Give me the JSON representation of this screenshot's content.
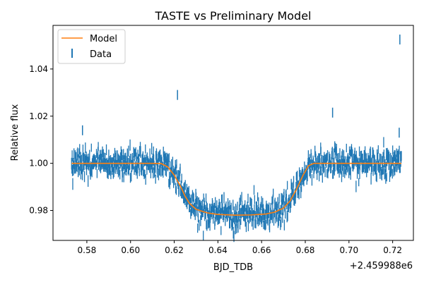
{
  "chart_data": {
    "type": "scatter",
    "title": "TASTE vs Preliminary Model",
    "xlabel": "BJD_TDB",
    "ylabel": "Relative flux",
    "x_offset_label": "+2.459988e6",
    "xlim": [
      0.5645,
      0.7295
    ],
    "ylim": [
      0.9673,
      1.0585
    ],
    "x_ticks": [
      0.58,
      0.6,
      0.62,
      0.64,
      0.66,
      0.68,
      0.7,
      0.72
    ],
    "x_tick_labels": [
      "0.58",
      "0.60",
      "0.62",
      "0.64",
      "0.66",
      "0.68",
      "0.70",
      "0.72"
    ],
    "y_ticks": [
      0.98,
      1.0,
      1.02,
      1.04
    ],
    "y_tick_labels": [
      "0.98",
      "1.00",
      "1.02",
      "1.04"
    ],
    "grid": false,
    "legend": {
      "position": "upper left",
      "entries": [
        {
          "label": "Model",
          "marker": "line",
          "color": "#ff7f0e"
        },
        {
          "label": "Data",
          "marker": "errorbar",
          "color": "#1f77b4"
        }
      ]
    },
    "series": [
      {
        "name": "Model",
        "kind": "line",
        "color": "#ff7f0e",
        "points": [
          [
            0.573,
            1.0
          ],
          [
            0.6,
            1.0
          ],
          [
            0.61,
            1.0
          ],
          [
            0.614,
            0.9999
          ],
          [
            0.617,
            0.9985
          ],
          [
            0.62,
            0.995
          ],
          [
            0.623,
            0.99
          ],
          [
            0.625,
            0.986
          ],
          [
            0.627,
            0.983
          ],
          [
            0.63,
            0.9805
          ],
          [
            0.635,
            0.979
          ],
          [
            0.64,
            0.9783
          ],
          [
            0.648,
            0.978
          ],
          [
            0.655,
            0.9781
          ],
          [
            0.662,
            0.9785
          ],
          [
            0.666,
            0.9793
          ],
          [
            0.67,
            0.981
          ],
          [
            0.673,
            0.984
          ],
          [
            0.676,
            0.989
          ],
          [
            0.679,
            0.995
          ],
          [
            0.6815,
            0.999
          ],
          [
            0.684,
            1.0
          ],
          [
            0.7,
            1.0
          ],
          [
            0.724,
            1.0
          ]
        ]
      },
      {
        "name": "Data",
        "kind": "errorbar",
        "color": "#1f77b4",
        "x_range": [
          0.573,
          0.724
        ],
        "n_points": 1100,
        "scatter_sigma": 0.003,
        "error_bar_halfwidth": 0.0021,
        "outliers": [
          {
            "x": 0.6215,
            "y": 1.029
          },
          {
            "x": 0.6925,
            "y": 1.0215
          },
          {
            "x": 0.7233,
            "y": 1.0525
          },
          {
            "x": 0.578,
            "y": 1.014
          },
          {
            "x": 0.723,
            "y": 1.013
          },
          {
            "x": 0.648,
            "y": 0.972
          }
        ]
      }
    ]
  }
}
